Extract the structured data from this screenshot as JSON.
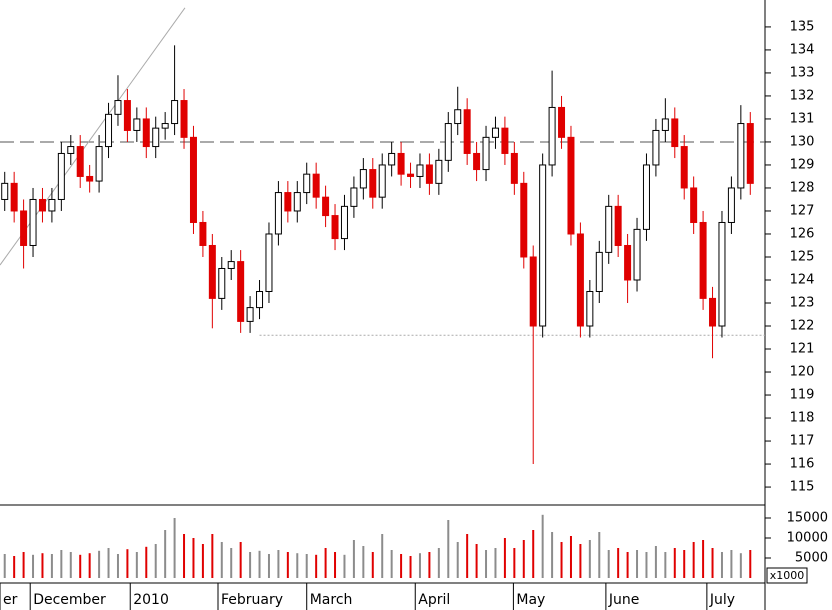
{
  "chart_data": {
    "type": "candlestick",
    "xlim": [
      0,
      80
    ],
    "xticks": [
      {
        "value": 0,
        "label": "er"
      },
      {
        "value": 3.2,
        "label": "December"
      },
      {
        "value": 13.8,
        "label": "2010"
      },
      {
        "value": 23.1,
        "label": "February"
      },
      {
        "value": 32.5,
        "label": "March"
      },
      {
        "value": 44,
        "label": "April"
      },
      {
        "value": 54.4,
        "label": "May"
      },
      {
        "value": 64.2,
        "label": "June"
      },
      {
        "value": 74.9,
        "label": "July"
      }
    ],
    "ylim": [
      114.22,
      136.17
    ],
    "yticks": [
      115,
      116,
      117,
      118,
      119,
      120,
      121,
      122,
      123,
      124,
      125,
      126,
      127,
      128,
      129,
      130,
      131,
      132,
      133,
      134,
      135
    ],
    "open": [
      127.5,
      128.2,
      127,
      125.5,
      127.5,
      127,
      127.5,
      129.5,
      129.8,
      128.5,
      128.3,
      129.8,
      131.2,
      131.8,
      130.5,
      131,
      129.8,
      130.6,
      130.8,
      131.8,
      130.2,
      126.5,
      125.5,
      123.2,
      124.5,
      124.8,
      122.2,
      122.8,
      123.5,
      126,
      127.8,
      127,
      127.8,
      128.6,
      127.6,
      126.8,
      125.8,
      127.2,
      128,
      128.8,
      127.6,
      129,
      129.5,
      128.6,
      128.5,
      129,
      128.2,
      129.2,
      130.8,
      131.4,
      129.5,
      128.8,
      130.2,
      130.6,
      129.5,
      128.2,
      125,
      122,
      129,
      131.5,
      130.2,
      126,
      122,
      123.5,
      125.2,
      127.2,
      125.5,
      124,
      126.2,
      129,
      130.5,
      131,
      129.8,
      128,
      126.5,
      123.2,
      122,
      126.5,
      128,
      130.8
    ],
    "high": [
      128.7,
      128.7,
      127.5,
      128,
      128,
      128,
      130,
      130.3,
      130.3,
      129,
      130.3,
      131.7,
      132.9,
      132.3,
      131.5,
      131.5,
      131.1,
      131.3,
      134.2,
      132.3,
      130.7,
      127,
      126,
      125,
      125.3,
      125.3,
      123.3,
      124,
      126.5,
      128.3,
      128.3,
      128.3,
      129.1,
      129.1,
      128.1,
      127.3,
      127.7,
      128.5,
      129.3,
      129.3,
      129.5,
      130,
      130,
      129.1,
      129.5,
      129.5,
      129.7,
      131.3,
      132.4,
      131.9,
      130,
      130.7,
      131.1,
      131.1,
      130,
      128.7,
      125.5,
      129.5,
      133.1,
      132,
      130.7,
      126.5,
      124,
      125.7,
      127.7,
      127.7,
      126,
      126.7,
      129.5,
      131,
      131.9,
      131.5,
      130.3,
      128.5,
      127,
      123.7,
      127,
      128.5,
      131.6,
      131.3
    ],
    "low": [
      127,
      126.5,
      124.5,
      125,
      126.5,
      126.5,
      127,
      129,
      128,
      127.8,
      127.8,
      129.3,
      130.7,
      130,
      130,
      129.3,
      129.3,
      130.1,
      130.3,
      129.7,
      126,
      125,
      121.9,
      122.7,
      124,
      121.7,
      121.7,
      122.3,
      123,
      125.5,
      126.5,
      126.5,
      127.3,
      127.1,
      126.3,
      125.3,
      125.3,
      126.7,
      127.5,
      127.1,
      127.1,
      128.5,
      128.1,
      128,
      128,
      127.7,
      127.7,
      128.7,
      130.3,
      129,
      128.3,
      128.3,
      129.7,
      129,
      127.7,
      124.5,
      116,
      121.5,
      128.5,
      129.7,
      125.5,
      121.5,
      121.5,
      123,
      124.7,
      125,
      123,
      123.5,
      125.7,
      128.5,
      130,
      129.3,
      127.5,
      126,
      122.7,
      120.6,
      121.5,
      126,
      127.5,
      127.7
    ],
    "close": [
      128.2,
      127,
      125.5,
      127.5,
      127,
      127.5,
      129.5,
      129.8,
      128.5,
      128.3,
      129.8,
      131.2,
      131.8,
      130.5,
      131,
      129.8,
      130.6,
      130.8,
      131.8,
      130.2,
      126.5,
      125.5,
      123.2,
      124.5,
      124.8,
      122.2,
      122.8,
      123.5,
      126,
      127.8,
      127,
      127.8,
      128.6,
      127.6,
      126.8,
      125.8,
      127.2,
      128,
      128.8,
      127.6,
      129,
      129.5,
      128.6,
      128.5,
      129,
      128.2,
      129.2,
      130.8,
      131.4,
      129.5,
      128.8,
      130.2,
      130.6,
      129.5,
      128.2,
      125,
      122,
      129,
      131.5,
      130.2,
      126,
      122,
      123.5,
      125.2,
      127.2,
      125.5,
      124,
      126.2,
      129,
      130.5,
      131,
      129.8,
      128,
      126.5,
      123.2,
      122,
      126.5,
      128,
      130.8,
      128.2
    ],
    "volume": [
      6000,
      5500,
      6500,
      5800,
      6200,
      6000,
      7000,
      6500,
      5800,
      6200,
      6800,
      7500,
      6000,
      7200,
      6500,
      7800,
      8500,
      12000,
      15000,
      11000,
      10000,
      8500,
      11000,
      9000,
      7500,
      9000,
      6500,
      6800,
      6000,
      7000,
      6500,
      6200,
      6000,
      5800,
      7500,
      6500,
      5800,
      9500,
      8000,
      6500,
      11000,
      7000,
      6000,
      5500,
      6200,
      6500,
      7500,
      14500,
      9000,
      11000,
      8500,
      7000,
      7500,
      10000,
      7500,
      9500,
      12000,
      15800,
      11500,
      9000,
      10500,
      8500,
      9500,
      11500,
      7000,
      7500,
      6500,
      7000,
      6500,
      8000,
      6500,
      7500,
      7000,
      9000,
      9500,
      7500,
      6500,
      7000,
      6200,
      7000
    ],
    "y2lim": [
      -1250,
      18250
    ],
    "y2ticks": [
      5000,
      10000,
      15000
    ],
    "volume_unit": "x1000",
    "up_color": "#000000",
    "down_color": "#e00000",
    "volume_up_color": "#8c8c8c",
    "hlines": [
      {
        "value": 130,
        "style": "dashed",
        "color": "#555555"
      },
      {
        "value": 121.6,
        "style": "dotted",
        "color": "#aaaaaa",
        "from": 27.5
      }
    ],
    "trendline": {
      "x": [
        0,
        19.6
      ],
      "y": [
        124.65,
        135.83
      ],
      "color": "#aaaaaa"
    }
  }
}
